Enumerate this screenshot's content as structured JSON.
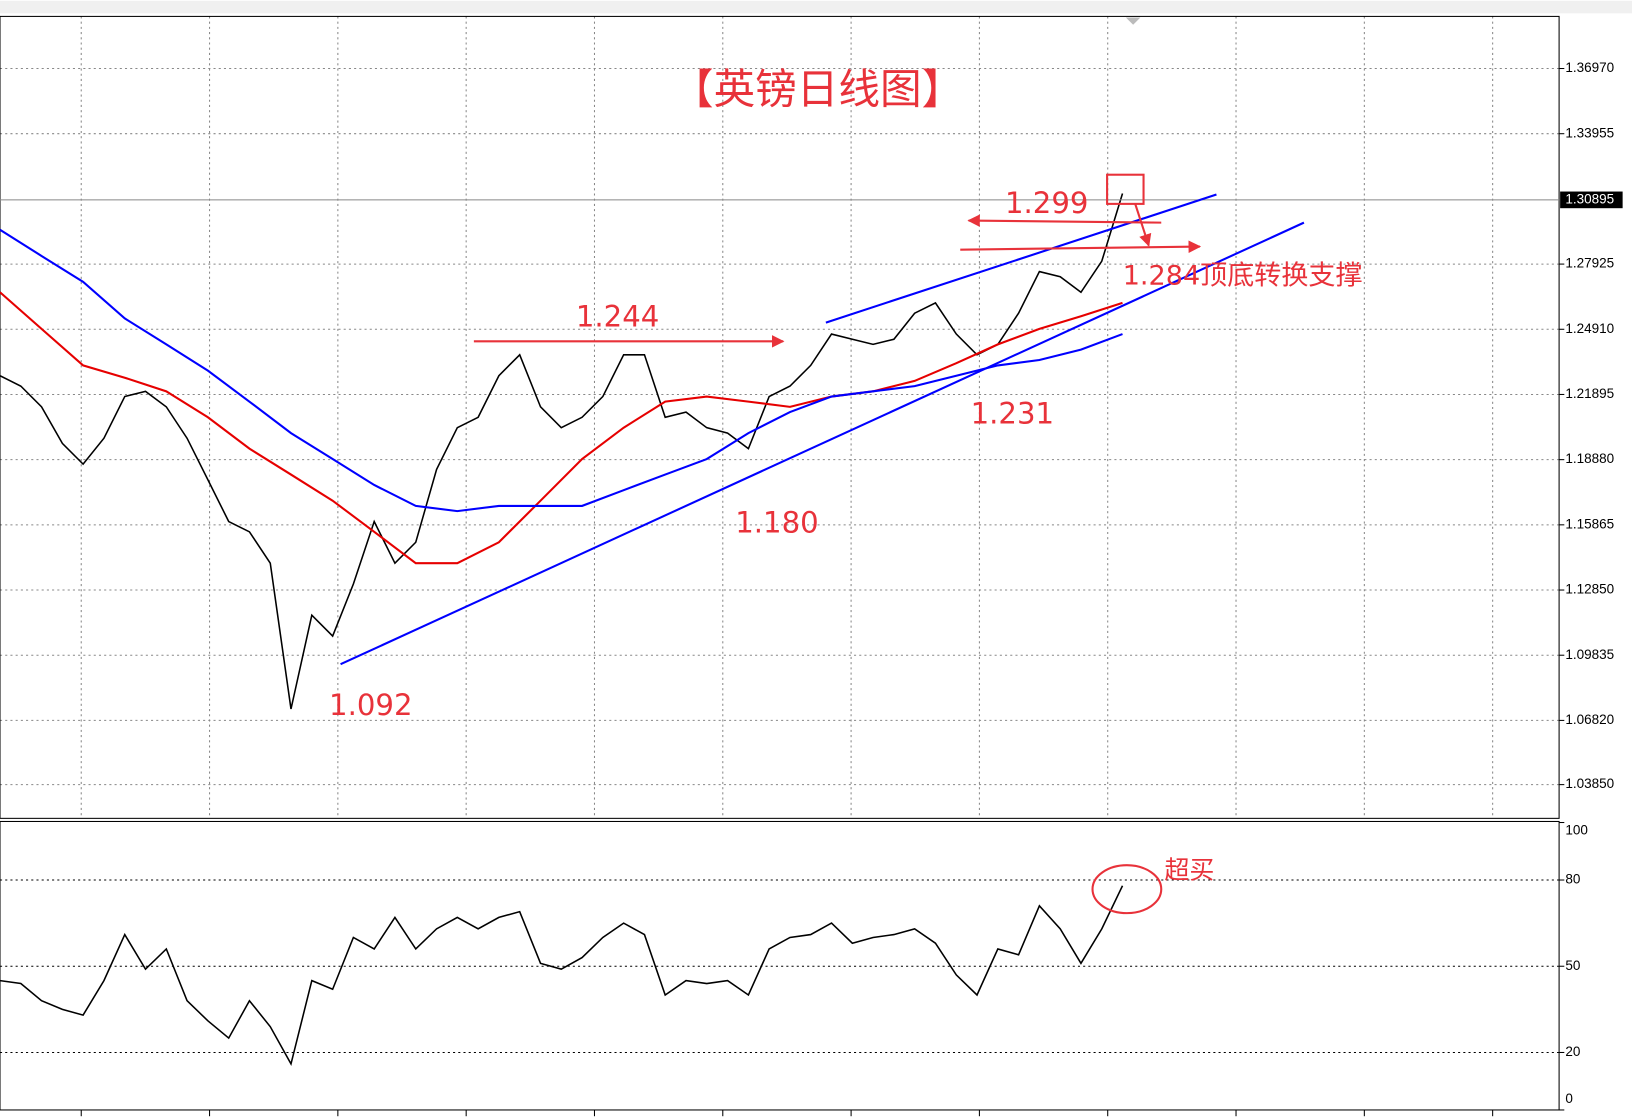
{
  "chart_data": [
    {
      "type": "line",
      "annotations": [
        "【英镑日线图】",
        "1.299",
        "1.244",
        "1.284顶底转换支撑",
        "1.231",
        "1.180",
        "1.092"
      ],
      "xlim": [
        0,
        75
      ],
      "ylim": [
        1.0229,
        1.3938
      ],
      "yticks": [
        {
          "value": 1.3697,
          "label": "1.36970"
        },
        {
          "value": 1.33955,
          "label": "1.33955"
        },
        {
          "value": 1.27925,
          "label": "1.27925"
        },
        {
          "value": 1.2491,
          "label": "1.24910"
        },
        {
          "value": 1.21895,
          "label": "1.21895"
        },
        {
          "value": 1.1888,
          "label": "1.18880"
        },
        {
          "value": 1.15865,
          "label": "1.15865"
        },
        {
          "value": 1.1285,
          "label": "1.12850"
        },
        {
          "value": 1.09835,
          "label": "1.09835"
        },
        {
          "value": 1.0682,
          "label": "1.06820"
        },
        {
          "value": 1.0385,
          "label": "1.03850"
        }
      ],
      "last_price": {
        "value": 1.30895,
        "label": "1.30895"
      },
      "grid": true,
      "series": [
        {
          "color": "#000000",
          "x": [
            0,
            1,
            2,
            3,
            4,
            5,
            6,
            7,
            8,
            9,
            10,
            11,
            12,
            13,
            14,
            15,
            16,
            17,
            18,
            19,
            20,
            21,
            22,
            23,
            24,
            25,
            26,
            27,
            28,
            29,
            30,
            31,
            32,
            33,
            34,
            35,
            36,
            37,
            38,
            39,
            40,
            41,
            42,
            43,
            44,
            45,
            46,
            47,
            48,
            49,
            50,
            51,
            52,
            53,
            54
          ],
          "values": [
            1.2276,
            1.2228,
            1.2132,
            1.1963,
            1.1867,
            1.1987,
            1.218,
            1.2204,
            1.2132,
            1.1987,
            1.1795,
            1.1602,
            1.1554,
            1.1409,
            1.0735,
            1.1169,
            1.1072,
            1.1313,
            1.1602,
            1.1409,
            1.1506,
            1.1843,
            1.2036,
            1.2084,
            1.2276,
            1.2373,
            1.2132,
            1.2036,
            1.2084,
            1.218,
            1.2373,
            1.2373,
            1.2084,
            1.2108,
            1.2036,
            1.2011,
            1.1939,
            1.218,
            1.2228,
            1.2324,
            1.2469,
            1.2445,
            1.2421,
            1.2445,
            1.2565,
            1.2613,
            1.2469,
            1.2373,
            1.2421,
            1.2565,
            1.2758,
            1.2734,
            1.2662,
            1.2806,
            1.3119
          ]
        },
        {
          "color": "#e60000",
          "x": [
            0,
            2,
            4,
            6,
            8,
            10,
            12,
            14,
            16,
            18,
            20,
            22,
            24,
            26,
            28,
            30,
            32,
            34,
            36,
            38,
            40,
            42,
            44,
            46,
            48,
            50,
            52,
            54
          ],
          "values": [
            1.2662,
            1.2493,
            1.2324,
            1.2267,
            1.2204,
            1.2084,
            1.1939,
            1.1819,
            1.1698,
            1.1554,
            1.1409,
            1.1409,
            1.1506,
            1.1698,
            1.1891,
            1.2036,
            1.2156,
            1.218,
            1.2156,
            1.2132,
            1.218,
            1.2204,
            1.2252,
            1.2334,
            1.2421,
            1.2493,
            1.2551,
            1.2613
          ]
        },
        {
          "color": "#0000ff",
          "x": [
            0,
            2,
            4,
            6,
            8,
            10,
            12,
            14,
            16,
            18,
            20,
            22,
            24,
            26,
            28,
            30,
            32,
            34,
            36,
            38,
            40,
            42,
            44,
            46,
            48,
            50,
            52,
            54
          ],
          "values": [
            1.2951,
            1.283,
            1.271,
            1.2541,
            1.2421,
            1.23,
            1.2156,
            1.2011,
            1.1891,
            1.1771,
            1.1674,
            1.165,
            1.1674,
            1.1674,
            1.1674,
            1.1747,
            1.1819,
            1.1891,
            1.2011,
            1.2108,
            1.218,
            1.2204,
            1.2228,
            1.2276,
            1.2324,
            1.2349,
            1.2397,
            1.2469
          ]
        }
      ]
    },
    {
      "type": "line",
      "annotations": [
        "超买"
      ],
      "xlim": [
        0,
        75
      ],
      "ylim": [
        0,
        100
      ],
      "yticks": [
        0,
        20,
        50,
        80,
        100
      ],
      "levels": [
        20,
        50,
        80
      ],
      "series": [
        {
          "color": "#000000",
          "x": [
            0,
            1,
            2,
            3,
            4,
            5,
            6,
            7,
            8,
            9,
            10,
            11,
            12,
            13,
            14,
            15,
            16,
            17,
            18,
            19,
            20,
            21,
            22,
            23,
            24,
            25,
            26,
            27,
            28,
            29,
            30,
            31,
            32,
            33,
            34,
            35,
            36,
            37,
            38,
            39,
            40,
            41,
            42,
            43,
            44,
            45,
            46,
            47,
            48,
            49,
            50,
            51,
            52,
            53,
            54
          ],
          "values": [
            45,
            44,
            38,
            35,
            33,
            45,
            61,
            49,
            56,
            38,
            31,
            25,
            38,
            29,
            16,
            45,
            42,
            60,
            56,
            67,
            56,
            63,
            67,
            63,
            67,
            69,
            51,
            49,
            53,
            60,
            65,
            61,
            40,
            45,
            44,
            45,
            40,
            56,
            60,
            61,
            65,
            58,
            60,
            61,
            63,
            58,
            47,
            40,
            56,
            54,
            71,
            63,
            51,
            63,
            78
          ]
        }
      ]
    }
  ]
}
